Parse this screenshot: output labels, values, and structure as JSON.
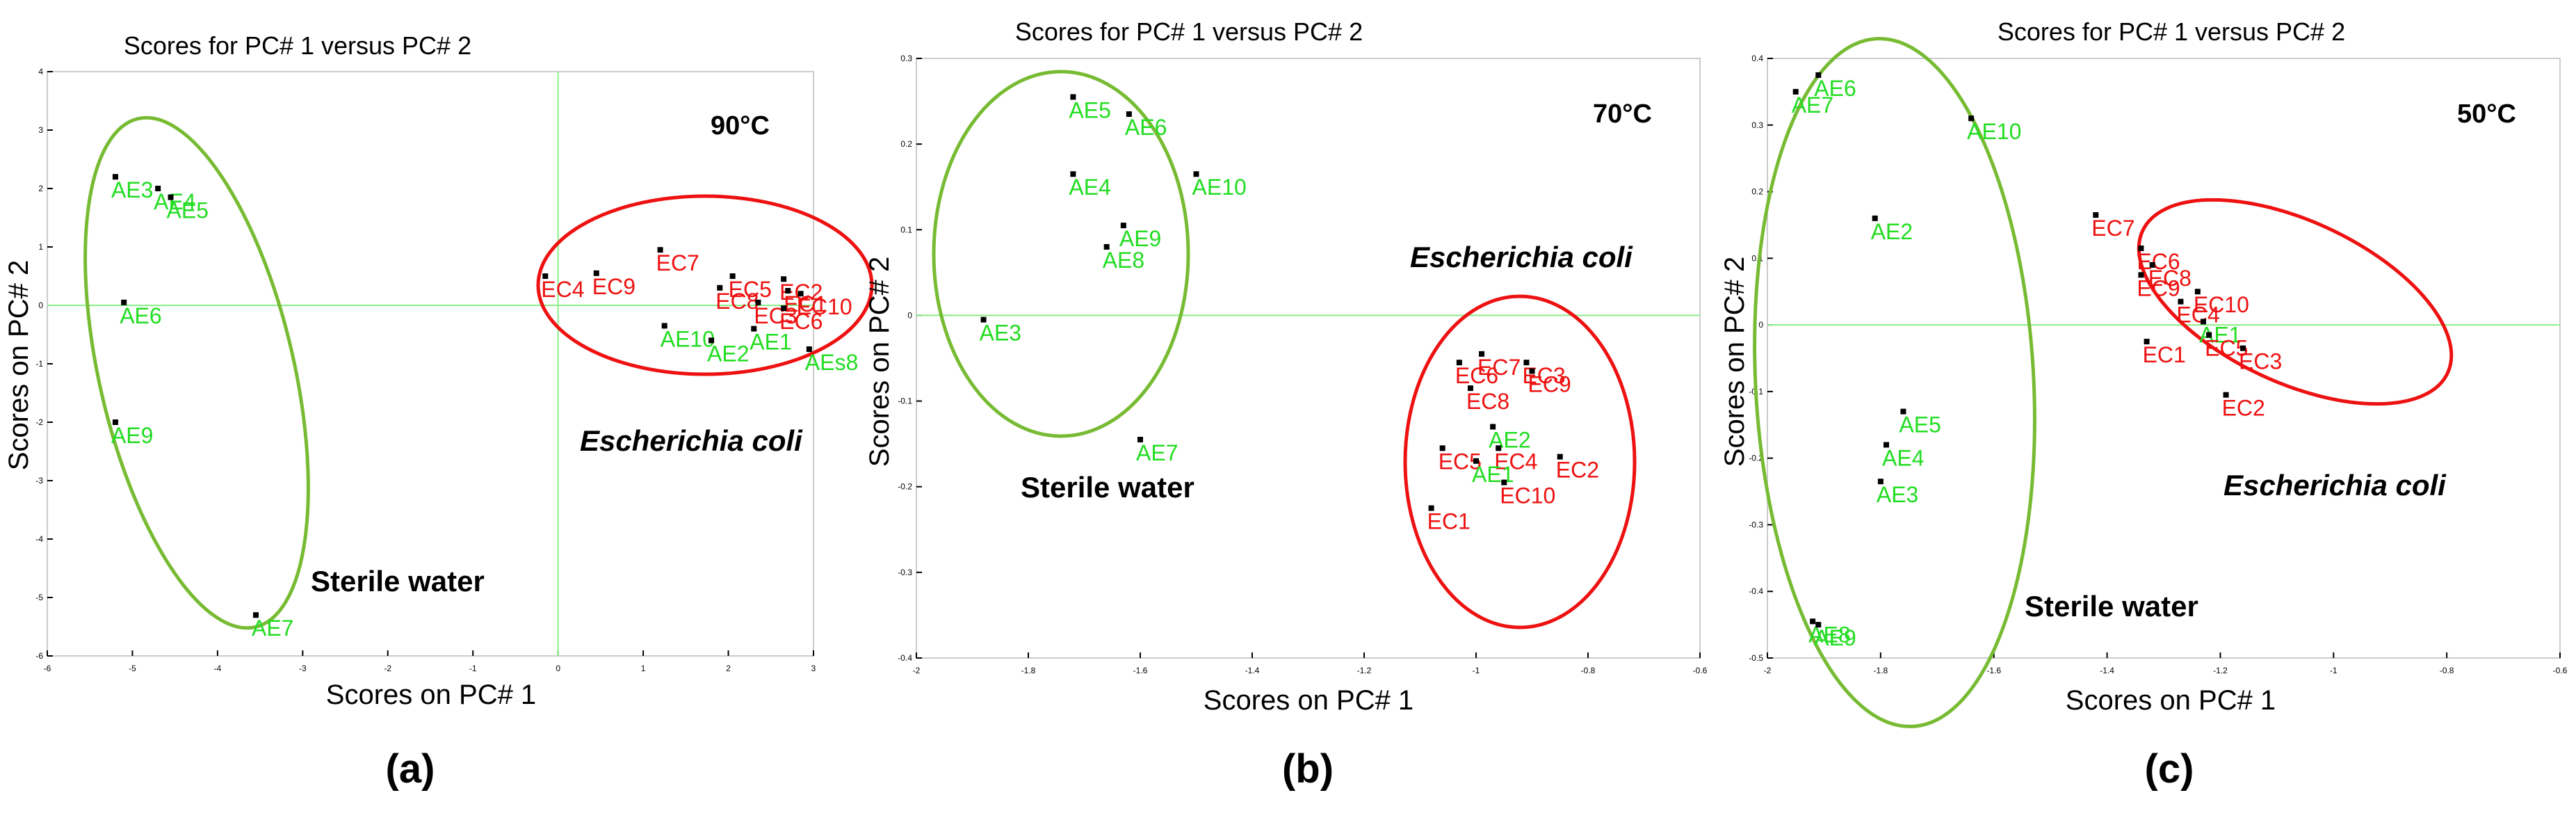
{
  "colors": {
    "water": "#22dd22",
    "ecoli": "#ee1111",
    "point": "#000000",
    "axis_line": "#88ee88",
    "ellipse_water": "#77bb33",
    "ellipse_ecoli": "#ee1111"
  },
  "chart_data": [
    {
      "type": "scatter",
      "panel_label": "(a)",
      "title": "Scores for PC# 1 versus PC# 2",
      "xlabel": "Scores on PC# 1",
      "ylabel": "Scores on PC# 2",
      "temperature": "90°C",
      "xlim": [
        -6,
        3
      ],
      "ylim": [
        -6,
        4
      ],
      "xticks": [
        -6,
        -5,
        -4,
        -3,
        -2,
        -1,
        0,
        1,
        2,
        3
      ],
      "yticks": [
        -6,
        -5,
        -4,
        -3,
        -2,
        -1,
        0,
        1,
        2,
        3,
        4
      ],
      "zero_lines": {
        "x": 0,
        "y": 0
      },
      "group_labels": {
        "water": "Sterile water",
        "ecoli": "Escherichia coli"
      },
      "series": [
        {
          "name": "Sterile water",
          "points": [
            {
              "label": "AE3",
              "x": -5.2,
              "y": 2.2
            },
            {
              "label": "AE4",
              "x": -4.7,
              "y": 2.0
            },
            {
              "label": "AE5",
              "x": -4.55,
              "y": 1.85
            },
            {
              "label": "AE6",
              "x": -5.1,
              "y": 0.05
            },
            {
              "label": "AE9",
              "x": -5.2,
              "y": -2.0
            },
            {
              "label": "AE7",
              "x": -3.55,
              "y": -5.3
            }
          ]
        },
        {
          "name": "Escherichia coli",
          "points": [
            {
              "label": "EC4",
              "x": -0.15,
              "y": 0.5
            },
            {
              "label": "EC9",
              "x": 0.45,
              "y": 0.55
            },
            {
              "label": "EC7",
              "x": 1.2,
              "y": 0.95
            },
            {
              "label": "EC5",
              "x": 2.05,
              "y": 0.5
            },
            {
              "label": "EC2",
              "x": 2.65,
              "y": 0.45
            },
            {
              "label": "EC8",
              "x": 1.9,
              "y": 0.3
            },
            {
              "label": "EC1",
              "x": 2.7,
              "y": 0.25
            },
            {
              "label": "EC10",
              "x": 2.85,
              "y": 0.2
            },
            {
              "label": "EC3",
              "x": 2.35,
              "y": 0.05
            },
            {
              "label": "EC6",
              "x": 2.65,
              "y": -0.05
            },
            {
              "label": "AE10",
              "x": 1.25,
              "y": -0.35
            },
            {
              "label": "AE1",
              "x": 2.3,
              "y": -0.4
            },
            {
              "label": "AE2",
              "x": 1.8,
              "y": -0.6
            },
            {
              "label": "AEs8",
              "x": 2.95,
              "y": -0.75
            }
          ]
        }
      ]
    },
    {
      "type": "scatter",
      "panel_label": "(b)",
      "title": "Scores for PC# 1 versus PC# 2",
      "xlabel": "Scores on PC# 1",
      "ylabel": "Scores on PC# 2",
      "temperature": "70°C",
      "xlim": [
        -2,
        -0.6
      ],
      "ylim": [
        -0.4,
        0.3
      ],
      "xticks": [
        -2,
        -1.8,
        -1.6,
        -1.4,
        -1.2,
        -1,
        -0.8,
        -0.6
      ],
      "yticks": [
        -0.4,
        -0.3,
        -0.2,
        -0.1,
        0,
        0.1,
        0.2,
        0.3
      ],
      "zero_lines": {
        "y": 0
      },
      "group_labels": {
        "water": "Sterile water",
        "ecoli": "Escherichia coli"
      },
      "series": [
        {
          "name": "Sterile water",
          "points": [
            {
              "label": "AE5",
              "x": -1.72,
              "y": 0.255
            },
            {
              "label": "AE6",
              "x": -1.62,
              "y": 0.235
            },
            {
              "label": "AE4",
              "x": -1.72,
              "y": 0.165
            },
            {
              "label": "AE10",
              "x": -1.5,
              "y": 0.165
            },
            {
              "label": "AE9",
              "x": -1.63,
              "y": 0.105
            },
            {
              "label": "AE8",
              "x": -1.66,
              "y": 0.08
            },
            {
              "label": "AE3",
              "x": -1.88,
              "y": -0.005
            },
            {
              "label": "AE7",
              "x": -1.6,
              "y": -0.145
            }
          ]
        },
        {
          "name": "Escherichia coli",
          "points": [
            {
              "label": "EC6",
              "x": -1.03,
              "y": -0.055
            },
            {
              "label": "EC7",
              "x": -0.99,
              "y": -0.045
            },
            {
              "label": "EC3",
              "x": -0.91,
              "y": -0.055
            },
            {
              "label": "EC9",
              "x": -0.9,
              "y": -0.065
            },
            {
              "label": "EC8",
              "x": -1.01,
              "y": -0.085
            },
            {
              "label": "AE2",
              "x": -0.97,
              "y": -0.13
            },
            {
              "label": "EC5",
              "x": -1.06,
              "y": -0.155
            },
            {
              "label": "EC4",
              "x": -0.96,
              "y": -0.155
            },
            {
              "label": "EC2",
              "x": -0.85,
              "y": -0.165
            },
            {
              "label": "AE1",
              "x": -1.0,
              "y": -0.17
            },
            {
              "label": "EC10",
              "x": -0.95,
              "y": -0.195
            },
            {
              "label": "EC1",
              "x": -1.08,
              "y": -0.225
            }
          ]
        }
      ]
    },
    {
      "type": "scatter",
      "panel_label": "(c)",
      "title": "Scores for PC# 1 versus PC# 2",
      "xlabel": "Scores on PC# 1",
      "ylabel": "Scores on PC# 2",
      "temperature": "50°C",
      "xlim": [
        -2,
        -0.6
      ],
      "ylim": [
        -0.5,
        0.4
      ],
      "xticks": [
        -2,
        -1.8,
        -1.6,
        -1.4,
        -1.2,
        -1,
        -0.8,
        -0.6
      ],
      "yticks": [
        -0.5,
        -0.4,
        -0.3,
        -0.2,
        -0.1,
        0,
        0.1,
        0.2,
        0.3,
        0.4
      ],
      "zero_lines": {
        "y": 0
      },
      "group_labels": {
        "water": "Sterile water",
        "ecoli": "Escherichia coli"
      },
      "series": [
        {
          "name": "Sterile water",
          "points": [
            {
              "label": "AE7",
              "x": -1.95,
              "y": 0.35
            },
            {
              "label": "AE6",
              "x": -1.91,
              "y": 0.375
            },
            {
              "label": "AE10",
              "x": -1.64,
              "y": 0.31
            },
            {
              "label": "AE2",
              "x": -1.81,
              "y": 0.16
            },
            {
              "label": "AE5",
              "x": -1.76,
              "y": -0.13
            },
            {
              "label": "AE4",
              "x": -1.79,
              "y": -0.18
            },
            {
              "label": "AE3",
              "x": -1.8,
              "y": -0.235
            },
            {
              "label": "AE8",
              "x": -1.92,
              "y": -0.445
            },
            {
              "label": "AE9",
              "x": -1.91,
              "y": -0.45
            }
          ]
        },
        {
          "name": "Escherichia coli",
          "points": [
            {
              "label": "EC7",
              "x": -1.42,
              "y": 0.165
            },
            {
              "label": "EC6",
              "x": -1.34,
              "y": 0.115
            },
            {
              "label": "EC8",
              "x": -1.32,
              "y": 0.09
            },
            {
              "label": "EC9",
              "x": -1.34,
              "y": 0.075
            },
            {
              "label": "EC10",
              "x": -1.24,
              "y": 0.05
            },
            {
              "label": "EC4",
              "x": -1.27,
              "y": 0.035
            },
            {
              "label": "AE1",
              "x": -1.23,
              "y": 0.005
            },
            {
              "label": "EC5",
              "x": -1.22,
              "y": -0.015
            },
            {
              "label": "EC3",
              "x": -1.16,
              "y": -0.035
            },
            {
              "label": "EC1",
              "x": -1.33,
              "y": -0.025
            },
            {
              "label": "EC2",
              "x": -1.19,
              "y": -0.105
            }
          ]
        }
      ]
    }
  ]
}
